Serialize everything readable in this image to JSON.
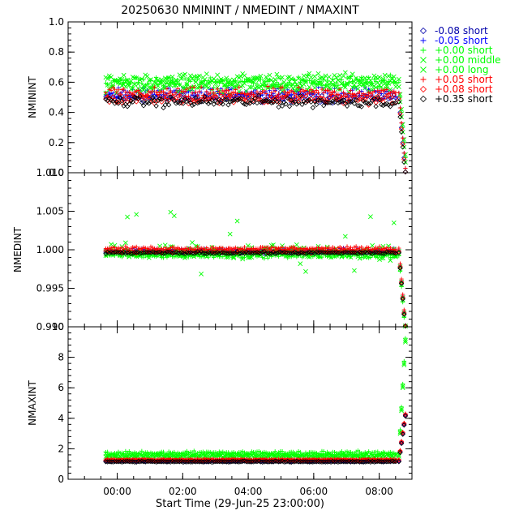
{
  "chart_data": [
    {
      "type": "scatter",
      "title": "20250630 NMININT / NMEDINT / NMAXINT",
      "ylabel": "NMININT",
      "ylim": [
        0.0,
        1.0
      ],
      "yticks": [
        "0.0",
        "0.2",
        "0.4",
        "0.6",
        "0.8",
        "1.0"
      ],
      "xticks": [
        "00:00",
        "02:00",
        "04:00",
        "06:00",
        "08:00"
      ],
      "series": [
        {
          "name": "-0.08 short",
          "color": "#0000aa",
          "marker": "diamond",
          "level": 0.5,
          "spread": 0.05,
          "end": "drop"
        },
        {
          "name": "-0.05 short",
          "color": "#0000ff",
          "marker": "plus",
          "level": 0.53,
          "spread": 0.05,
          "end": "drop"
        },
        {
          "name": "+0.00 short",
          "color": "#00ff00",
          "marker": "plus",
          "level": 0.6,
          "spread": 0.06,
          "end": "drop"
        },
        {
          "name": "+0.00 middle",
          "color": "#00ff00",
          "marker": "cross",
          "level": 0.62,
          "spread": 0.06,
          "end": "drop"
        },
        {
          "name": "+0.00 long",
          "color": "#00ff00",
          "marker": "cross",
          "level": 0.57,
          "spread": 0.06,
          "end": "drop"
        },
        {
          "name": "+0.05 short",
          "color": "#ff0000",
          "marker": "plus",
          "level": 0.53,
          "spread": 0.05,
          "end": "drop"
        },
        {
          "name": "+0.08 short",
          "color": "#ff0000",
          "marker": "diamond",
          "level": 0.49,
          "spread": 0.05,
          "end": "drop"
        },
        {
          "name": "+0.35 short",
          "color": "#000000",
          "marker": "diamond",
          "level": 0.47,
          "spread": 0.05,
          "end": "drop"
        }
      ]
    },
    {
      "type": "scatter",
      "ylabel": "NMEDINT",
      "ylim": [
        0.99,
        1.01
      ],
      "yticks": [
        "0.990",
        "0.995",
        "1.000",
        "1.005",
        "1.010"
      ],
      "xticks": [
        "00:00",
        "02:00",
        "04:00",
        "06:00",
        "08:00"
      ],
      "series": [
        {
          "name": "-0.08 short",
          "color": "#0000aa",
          "marker": "diamond",
          "level": 0.9997,
          "spread": 0.0003,
          "end": "drop"
        },
        {
          "name": "-0.05 short",
          "color": "#0000ff",
          "marker": "plus",
          "level": 1.0,
          "spread": 0.0003,
          "end": "drop"
        },
        {
          "name": "+0.00 short",
          "color": "#00ff00",
          "marker": "plus",
          "level": 0.9992,
          "spread": 0.0004,
          "end": "drop"
        },
        {
          "name": "+0.00 middle",
          "color": "#00ff00",
          "marker": "cross",
          "level": 0.9995,
          "spread": 0.0008,
          "end": "drop"
        },
        {
          "name": "+0.00 long",
          "color": "#00ff00",
          "marker": "cross",
          "level": 0.9998,
          "spread": 0.0012,
          "end": "drop"
        },
        {
          "name": "+0.05 short",
          "color": "#ff0000",
          "marker": "plus",
          "level": 1.0002,
          "spread": 0.0003,
          "end": "drop"
        },
        {
          "name": "+0.08 short",
          "color": "#ff0000",
          "marker": "diamond",
          "level": 0.9998,
          "spread": 0.0003,
          "end": "drop"
        },
        {
          "name": "+0.35 short",
          "color": "#000000",
          "marker": "diamond",
          "level": 0.9996,
          "spread": 0.0002,
          "end": "drop"
        }
      ]
    },
    {
      "type": "scatter",
      "ylabel": "NMAXINT",
      "ylim": [
        0,
        10
      ],
      "yticks": [
        "0",
        "2",
        "4",
        "6",
        "8",
        "10"
      ],
      "xticks": [
        "00:00",
        "02:00",
        "04:00",
        "06:00",
        "08:00"
      ],
      "xlabel": "Start Time (29-Jun-25 23:00:00)",
      "series": [
        {
          "name": "-0.08 short",
          "color": "#0000aa",
          "marker": "diamond",
          "level": 1.2,
          "spread": 0.06,
          "end": "rise"
        },
        {
          "name": "-0.05 short",
          "color": "#0000ff",
          "marker": "plus",
          "level": 1.25,
          "spread": 0.06,
          "end": "rise"
        },
        {
          "name": "+0.00 short",
          "color": "#00ff00",
          "marker": "plus",
          "level": 1.75,
          "spread": 0.15,
          "end": "rise"
        },
        {
          "name": "+0.00 middle",
          "color": "#00ff00",
          "marker": "cross",
          "level": 1.6,
          "spread": 0.15,
          "end": "rise"
        },
        {
          "name": "+0.00 long",
          "color": "#00ff00",
          "marker": "cross",
          "level": 1.5,
          "spread": 0.15,
          "end": "rise"
        },
        {
          "name": "+0.05 short",
          "color": "#ff0000",
          "marker": "plus",
          "level": 1.3,
          "spread": 0.06,
          "end": "rise"
        },
        {
          "name": "+0.08 short",
          "color": "#ff0000",
          "marker": "diamond",
          "level": 1.25,
          "spread": 0.06,
          "end": "rise"
        },
        {
          "name": "+0.35 short",
          "color": "#000000",
          "marker": "diamond",
          "level": 1.15,
          "spread": 0.05,
          "end": "rise"
        }
      ]
    }
  ]
}
